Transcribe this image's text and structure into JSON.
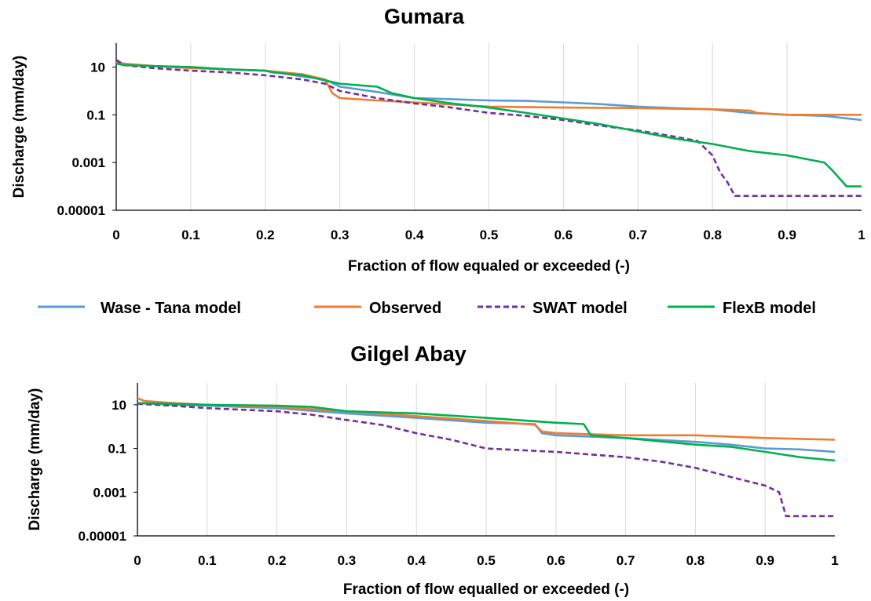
{
  "chart_data": [
    {
      "type": "line",
      "title": "Gumara",
      "xlabel": "Fraction of flow equaled or exceeded (-)",
      "ylabel": "Discharge (mm/day)",
      "xlim": [
        0,
        1
      ],
      "ylim": [
        1e-05,
        100
      ],
      "yscale": "log",
      "grid": "vertical",
      "x_ticks": [
        {
          "v": 0,
          "label": "0"
        },
        {
          "v": 0.1,
          "label": "0.1"
        },
        {
          "v": 0.2,
          "label": "0.2"
        },
        {
          "v": 0.3,
          "label": "0.3"
        },
        {
          "v": 0.4,
          "label": "0.4"
        },
        {
          "v": 0.5,
          "label": "0.5"
        },
        {
          "v": 0.6,
          "label": "0.6"
        },
        {
          "v": 0.7,
          "label": "0.7"
        },
        {
          "v": 0.8,
          "label": "0.8"
        },
        {
          "v": 0.9,
          "label": "0.9"
        },
        {
          "v": 1,
          "label": "1"
        }
      ],
      "y_ticks": [
        {
          "v": 10,
          "label": "10"
        },
        {
          "v": 0.1,
          "label": "0.1"
        },
        {
          "v": 0.001,
          "label": "0.001"
        },
        {
          "v": 1e-05,
          "label": "0.00001"
        }
      ],
      "series": [
        {
          "name": "Wase - Tana model",
          "color": "#5B9BD5",
          "dash": "solid",
          "x": [
            0,
            0.01,
            0.05,
            0.1,
            0.15,
            0.2,
            0.25,
            0.28,
            0.3,
            0.35,
            0.4,
            0.45,
            0.5,
            0.55,
            0.6,
            0.65,
            0.7,
            0.75,
            0.8,
            0.85,
            0.9,
            0.95,
            1
          ],
          "y": [
            20,
            13,
            11,
            9.5,
            8,
            7,
            4,
            3,
            1.5,
            0.9,
            0.5,
            0.45,
            0.4,
            0.38,
            0.33,
            0.28,
            0.22,
            0.19,
            0.17,
            0.12,
            0.1,
            0.09,
            0.06
          ]
        },
        {
          "name": "Observed",
          "color": "#ED7D31",
          "dash": "solid",
          "x": [
            0,
            0.01,
            0.05,
            0.1,
            0.15,
            0.2,
            0.25,
            0.28,
            0.29,
            0.3,
            0.35,
            0.4,
            0.45,
            0.5,
            0.6,
            0.7,
            0.8,
            0.85,
            0.86,
            0.9,
            1
          ],
          "y": [
            16,
            14,
            11,
            9,
            8,
            7,
            5,
            3,
            0.8,
            0.5,
            0.4,
            0.33,
            0.27,
            0.22,
            0.2,
            0.19,
            0.17,
            0.15,
            0.12,
            0.1,
            0.1
          ]
        },
        {
          "name": "SWAT model",
          "color": "#7030A0",
          "dash": "dashed",
          "x": [
            0,
            0.01,
            0.05,
            0.1,
            0.15,
            0.2,
            0.25,
            0.28,
            0.3,
            0.35,
            0.4,
            0.45,
            0.5,
            0.55,
            0.6,
            0.65,
            0.7,
            0.75,
            0.78,
            0.8,
            0.81,
            0.82,
            0.83,
            0.9,
            1
          ],
          "y": [
            20,
            12,
            9,
            7,
            6,
            4.5,
            3,
            2,
            1,
            0.5,
            0.3,
            0.2,
            0.12,
            0.09,
            0.06,
            0.035,
            0.022,
            0.012,
            0.008,
            0.002,
            0.0004,
            0.00015,
            4e-05,
            4e-05,
            4e-05
          ]
        },
        {
          "name": "FlexB model",
          "color": "#00B050",
          "dash": "solid",
          "x": [
            0,
            0.01,
            0.05,
            0.1,
            0.15,
            0.2,
            0.21,
            0.25,
            0.3,
            0.35,
            0.37,
            0.4,
            0.45,
            0.5,
            0.55,
            0.6,
            0.65,
            0.7,
            0.75,
            0.8,
            0.85,
            0.9,
            0.95,
            0.96,
            0.98,
            1
          ],
          "y": [
            14,
            12,
            11,
            10,
            8,
            7,
            6,
            4.5,
            2,
            1.5,
            0.8,
            0.5,
            0.3,
            0.2,
            0.12,
            0.07,
            0.04,
            0.02,
            0.01,
            0.006,
            0.003,
            0.002,
            0.001,
            0.0005,
            0.0001,
            0.0001
          ]
        }
      ]
    },
    {
      "type": "line",
      "title": "Gilgel Abay",
      "xlabel": "Fraction of flow equalled or exceeded (-)",
      "ylabel": "Discharge (mm/day)",
      "xlim": [
        0,
        1
      ],
      "ylim": [
        1e-05,
        100
      ],
      "yscale": "log",
      "grid": "vertical",
      "x_ticks": [
        {
          "v": 0,
          "label": "0"
        },
        {
          "v": 0.1,
          "label": "0.1"
        },
        {
          "v": 0.2,
          "label": "0.2"
        },
        {
          "v": 0.3,
          "label": "0.3"
        },
        {
          "v": 0.4,
          "label": "0.4"
        },
        {
          "v": 0.5,
          "label": "0.5"
        },
        {
          "v": 0.6,
          "label": "0.6"
        },
        {
          "v": 0.7,
          "label": "0.7"
        },
        {
          "v": 0.8,
          "label": "0.8"
        },
        {
          "v": 0.9,
          "label": "0.9"
        },
        {
          "v": 1,
          "label": "1"
        }
      ],
      "y_ticks": [
        {
          "v": 10,
          "label": "10"
        },
        {
          "v": 0.1,
          "label": "0.1"
        },
        {
          "v": 0.001,
          "label": "0.001"
        },
        {
          "v": 1e-05,
          "label": "0.00001"
        }
      ],
      "series": [
        {
          "name": "Wase - Tana model",
          "color": "#5B9BD5",
          "dash": "solid",
          "x": [
            0,
            0.05,
            0.1,
            0.2,
            0.3,
            0.4,
            0.5,
            0.57,
            0.58,
            0.6,
            0.7,
            0.8,
            0.85,
            0.9,
            0.95,
            1
          ],
          "y": [
            12,
            10,
            9,
            7,
            4,
            2.5,
            1.5,
            1.3,
            0.5,
            0.4,
            0.3,
            0.2,
            0.15,
            0.1,
            0.09,
            0.07
          ]
        },
        {
          "name": "Observed",
          "color": "#ED7D31",
          "dash": "solid",
          "x": [
            0,
            0.01,
            0.05,
            0.1,
            0.2,
            0.3,
            0.4,
            0.5,
            0.57,
            0.58,
            0.6,
            0.7,
            0.8,
            0.9,
            1
          ],
          "y": [
            20,
            15,
            12,
            10,
            8,
            5,
            3,
            1.8,
            1.2,
            0.6,
            0.5,
            0.4,
            0.4,
            0.3,
            0.25
          ]
        },
        {
          "name": "SWAT model",
          "color": "#7030A0",
          "dash": "dashed",
          "x": [
            0,
            0.05,
            0.1,
            0.2,
            0.25,
            0.3,
            0.35,
            0.4,
            0.45,
            0.5,
            0.6,
            0.7,
            0.75,
            0.8,
            0.85,
            0.9,
            0.92,
            0.93,
            1
          ],
          "y": [
            11,
            9,
            7,
            5,
            3.5,
            2,
            1.2,
            0.5,
            0.25,
            0.1,
            0.07,
            0.04,
            0.025,
            0.013,
            0.005,
            0.002,
            0.001,
            8e-05,
            8e-05
          ]
        },
        {
          "name": "FlexB model",
          "color": "#00B050",
          "dash": "solid",
          "x": [
            0,
            0.05,
            0.1,
            0.2,
            0.25,
            0.3,
            0.4,
            0.5,
            0.6,
            0.64,
            0.65,
            0.7,
            0.8,
            0.85,
            0.9,
            0.95,
            1
          ],
          "y": [
            12,
            11,
            10,
            9,
            8,
            5,
            4,
            2.5,
            1.5,
            1.3,
            0.4,
            0.3,
            0.15,
            0.12,
            0.07,
            0.04,
            0.028
          ]
        }
      ]
    }
  ],
  "legend": {
    "placement": "between charts",
    "items": [
      {
        "label": "Wase - Tana model",
        "color": "#5B9BD5",
        "dash": "solid"
      },
      {
        "label": "Observed",
        "color": "#ED7D31",
        "dash": "solid"
      },
      {
        "label": "SWAT model",
        "color": "#7030A0",
        "dash": "dashed"
      },
      {
        "label": "FlexB model",
        "color": "#00B050",
        "dash": "solid"
      }
    ]
  }
}
